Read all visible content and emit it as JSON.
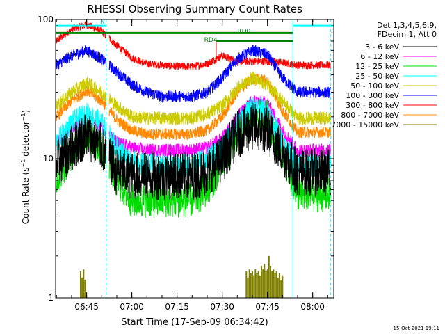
{
  "chart_data": {
    "type": "line",
    "title": "RHESSI Observing Summary Count Rates",
    "xlabel": "Start Time (17-Sep-09 06:34:42)",
    "ylabel": "Count Rate (s⁻¹ detector⁻¹)",
    "ylabel_parts": [
      "Count Rate (s",
      "−1",
      " detector",
      "−1",
      ")"
    ],
    "y_scale": "log",
    "ylim": [
      1,
      100
    ],
    "xlim": [
      "06:34:42",
      "08:07:00"
    ],
    "x_ticks": [
      "06:45",
      "07:00",
      "07:15",
      "07:30",
      "07:45",
      "08:00"
    ],
    "y_ticks": [
      "1",
      "10",
      "100"
    ],
    "grid": false,
    "timestamp": "15-Oct-2021 19:11",
    "legend": {
      "position": "right",
      "header": [
        "Det 1,3,4,5,6,9,",
        "FDecim 1, Att 0"
      ],
      "entries": [
        {
          "label": "3 - 6 keV",
          "color": "#000000"
        },
        {
          "label": "6 - 12 keV",
          "color": "#ff00ff"
        },
        {
          "label": "12 - 25 keV",
          "color": "#00dd00"
        },
        {
          "label": "25 - 50 keV",
          "color": "#00ffff"
        },
        {
          "label": "50 - 100 keV",
          "color": "#cccc00"
        },
        {
          "label": "100 - 300 keV",
          "color": "#0000ff"
        },
        {
          "label": "300 - 800 keV",
          "color": "#ff0000"
        },
        {
          "label": "800 - 7000 keV",
          "color": "#ff8800"
        },
        {
          "label": "7000 - 15000 keV",
          "color": "#808000"
        }
      ]
    },
    "annotations": [
      {
        "text": "N",
        "time": "06:49:30",
        "value": 90
      },
      {
        "text": "RD4",
        "time": "07:24:00",
        "value": 67
      },
      {
        "text": "RD0",
        "time": "07:35:00",
        "value": 77
      }
    ],
    "status_bars": [
      {
        "name": "night",
        "color": "#00ffff",
        "start": "06:34:42",
        "end": "06:51:30",
        "value": 90
      },
      {
        "name": "night",
        "color": "#00ffff",
        "start": "07:53:30",
        "end": "08:07:00",
        "value": 90
      },
      {
        "name": "attenuator",
        "color": "#008000",
        "start": "06:34:42",
        "end": "07:53:30",
        "value": 80
      },
      {
        "name": "rd0",
        "color": "#008000",
        "start": "07:28:00",
        "end": "07:53:30",
        "value": 70
      },
      {
        "name": "rd4",
        "color": "#ff0000",
        "time": "07:28:00",
        "from": 50,
        "to": 70
      }
    ],
    "vlines": [
      {
        "time": "06:34:42",
        "color": "#00ffff",
        "style": "solid"
      },
      {
        "time": "06:51:30",
        "color": "#00ffff",
        "style": "dashed"
      },
      {
        "time": "07:53:30",
        "color": "#00ffff",
        "style": "solid"
      },
      {
        "time": "08:06:00",
        "color": "#00ffff",
        "style": "dashed"
      }
    ],
    "segments": [
      {
        "start": "06:34:42",
        "end": "06:51:30"
      },
      {
        "start": "06:52:30",
        "end": "07:53:30"
      },
      {
        "start": "07:53:30",
        "end": "08:06:00"
      }
    ],
    "times": [
      "06:35",
      "06:40",
      "06:45",
      "06:50",
      "06:55",
      "07:00",
      "07:05",
      "07:10",
      "07:15",
      "07:20",
      "07:25",
      "07:30",
      "07:35",
      "07:40",
      "07:45",
      "07:50",
      "07:55",
      "08:00",
      "08:05"
    ],
    "series": [
      {
        "name": "3 - 6 keV",
        "color": "#000000",
        "noise": 0.25,
        "values": [
          9,
          12,
          15,
          12,
          8,
          7.5,
          7.5,
          7.5,
          7.5,
          7.5,
          8,
          10,
          15,
          17,
          16,
          11,
          8,
          8,
          8
        ]
      },
      {
        "name": "6 - 12 keV",
        "color": "#ff00ff",
        "noise": 0.07,
        "values": [
          13,
          17,
          19,
          17,
          13,
          12,
          11.5,
          11.5,
          11.5,
          11.5,
          12,
          14,
          20,
          26,
          25,
          16,
          11.5,
          11.5,
          11.5
        ]
      },
      {
        "name": "12 - 25 keV",
        "color": "#00dd00",
        "noise": 0.18,
        "values": [
          7,
          11,
          15,
          12,
          7,
          5,
          5,
          5,
          5,
          5,
          6,
          9,
          15,
          20,
          20,
          11,
          5.5,
          5.5,
          5.5
        ]
      },
      {
        "name": "25 - 50 keV",
        "color": "#00ffff",
        "noise": 0.12,
        "values": [
          13,
          18,
          21,
          18,
          12,
          9.5,
          9,
          9,
          9,
          9,
          10,
          12,
          18,
          24,
          22,
          13,
          9,
          9,
          9
        ]
      },
      {
        "name": "50 - 100 keV",
        "color": "#cccc00",
        "noise": 0.07,
        "values": [
          24,
          30,
          35,
          30,
          24,
          20,
          19.5,
          19.5,
          19.5,
          19.5,
          21,
          24,
          32,
          38,
          34,
          26,
          19.5,
          19.5,
          19.5
        ]
      },
      {
        "name": "100 - 300 keV",
        "color": "#0000ff",
        "noise": 0.06,
        "values": [
          47,
          55,
          60,
          52,
          42,
          34,
          30,
          28,
          28,
          28,
          30,
          38,
          52,
          60,
          56,
          38,
          30,
          30,
          30
        ]
      },
      {
        "name": "300 - 800 keV",
        "color": "#ff0000",
        "noise": 0.04,
        "values": [
          70,
          85,
          92,
          82,
          65,
          53,
          48,
          47,
          46,
          46,
          48,
          55,
          50,
          50,
          50,
          49,
          47,
          47,
          47
        ]
      },
      {
        "name": "800 - 7000 keV",
        "color": "#ff8800",
        "noise": 0.06,
        "values": [
          20,
          26,
          31,
          26,
          19,
          16,
          15,
          15,
          15,
          15,
          16,
          20,
          30,
          38,
          36,
          22,
          15.5,
          15.5,
          15.5
        ]
      },
      {
        "name": "7000 - 15000 keV",
        "color": "#808000",
        "type": "bar",
        "points": [
          {
            "time": "06:43:00",
            "value": 1.55
          },
          {
            "time": "06:43:30",
            "value": 1.4
          },
          {
            "time": "06:44:00",
            "value": 1.6
          },
          {
            "time": "06:44:30",
            "value": 1.35
          },
          {
            "time": "07:38:00",
            "value": 1.55
          },
          {
            "time": "07:38:30",
            "value": 1.4
          },
          {
            "time": "07:39:00",
            "value": 1.6
          },
          {
            "time": "07:39:30",
            "value": 1.5
          },
          {
            "time": "07:40:00",
            "value": 1.55
          },
          {
            "time": "07:40:30",
            "value": 1.45
          },
          {
            "time": "07:41:00",
            "value": 1.6
          },
          {
            "time": "07:41:30",
            "value": 1.5
          },
          {
            "time": "07:42:00",
            "value": 1.55
          },
          {
            "time": "07:42:30",
            "value": 1.45
          },
          {
            "time": "07:43:00",
            "value": 1.7
          },
          {
            "time": "07:43:30",
            "value": 1.6
          },
          {
            "time": "07:44:00",
            "value": 1.75
          },
          {
            "time": "07:44:30",
            "value": 1.55
          },
          {
            "time": "07:45:00",
            "value": 1.6
          },
          {
            "time": "07:45:30",
            "value": 2.0
          },
          {
            "time": "07:46:00",
            "value": 1.7
          },
          {
            "time": "07:46:30",
            "value": 1.55
          },
          {
            "time": "07:47:00",
            "value": 1.6
          },
          {
            "time": "07:47:30",
            "value": 1.5
          },
          {
            "time": "07:48:00",
            "value": 1.55
          },
          {
            "time": "07:48:30",
            "value": 1.4
          },
          {
            "time": "07:49:00",
            "value": 1.5
          },
          {
            "time": "07:49:30",
            "value": 1.35
          },
          {
            "time": "07:50:00",
            "value": 1.45
          }
        ]
      }
    ]
  }
}
